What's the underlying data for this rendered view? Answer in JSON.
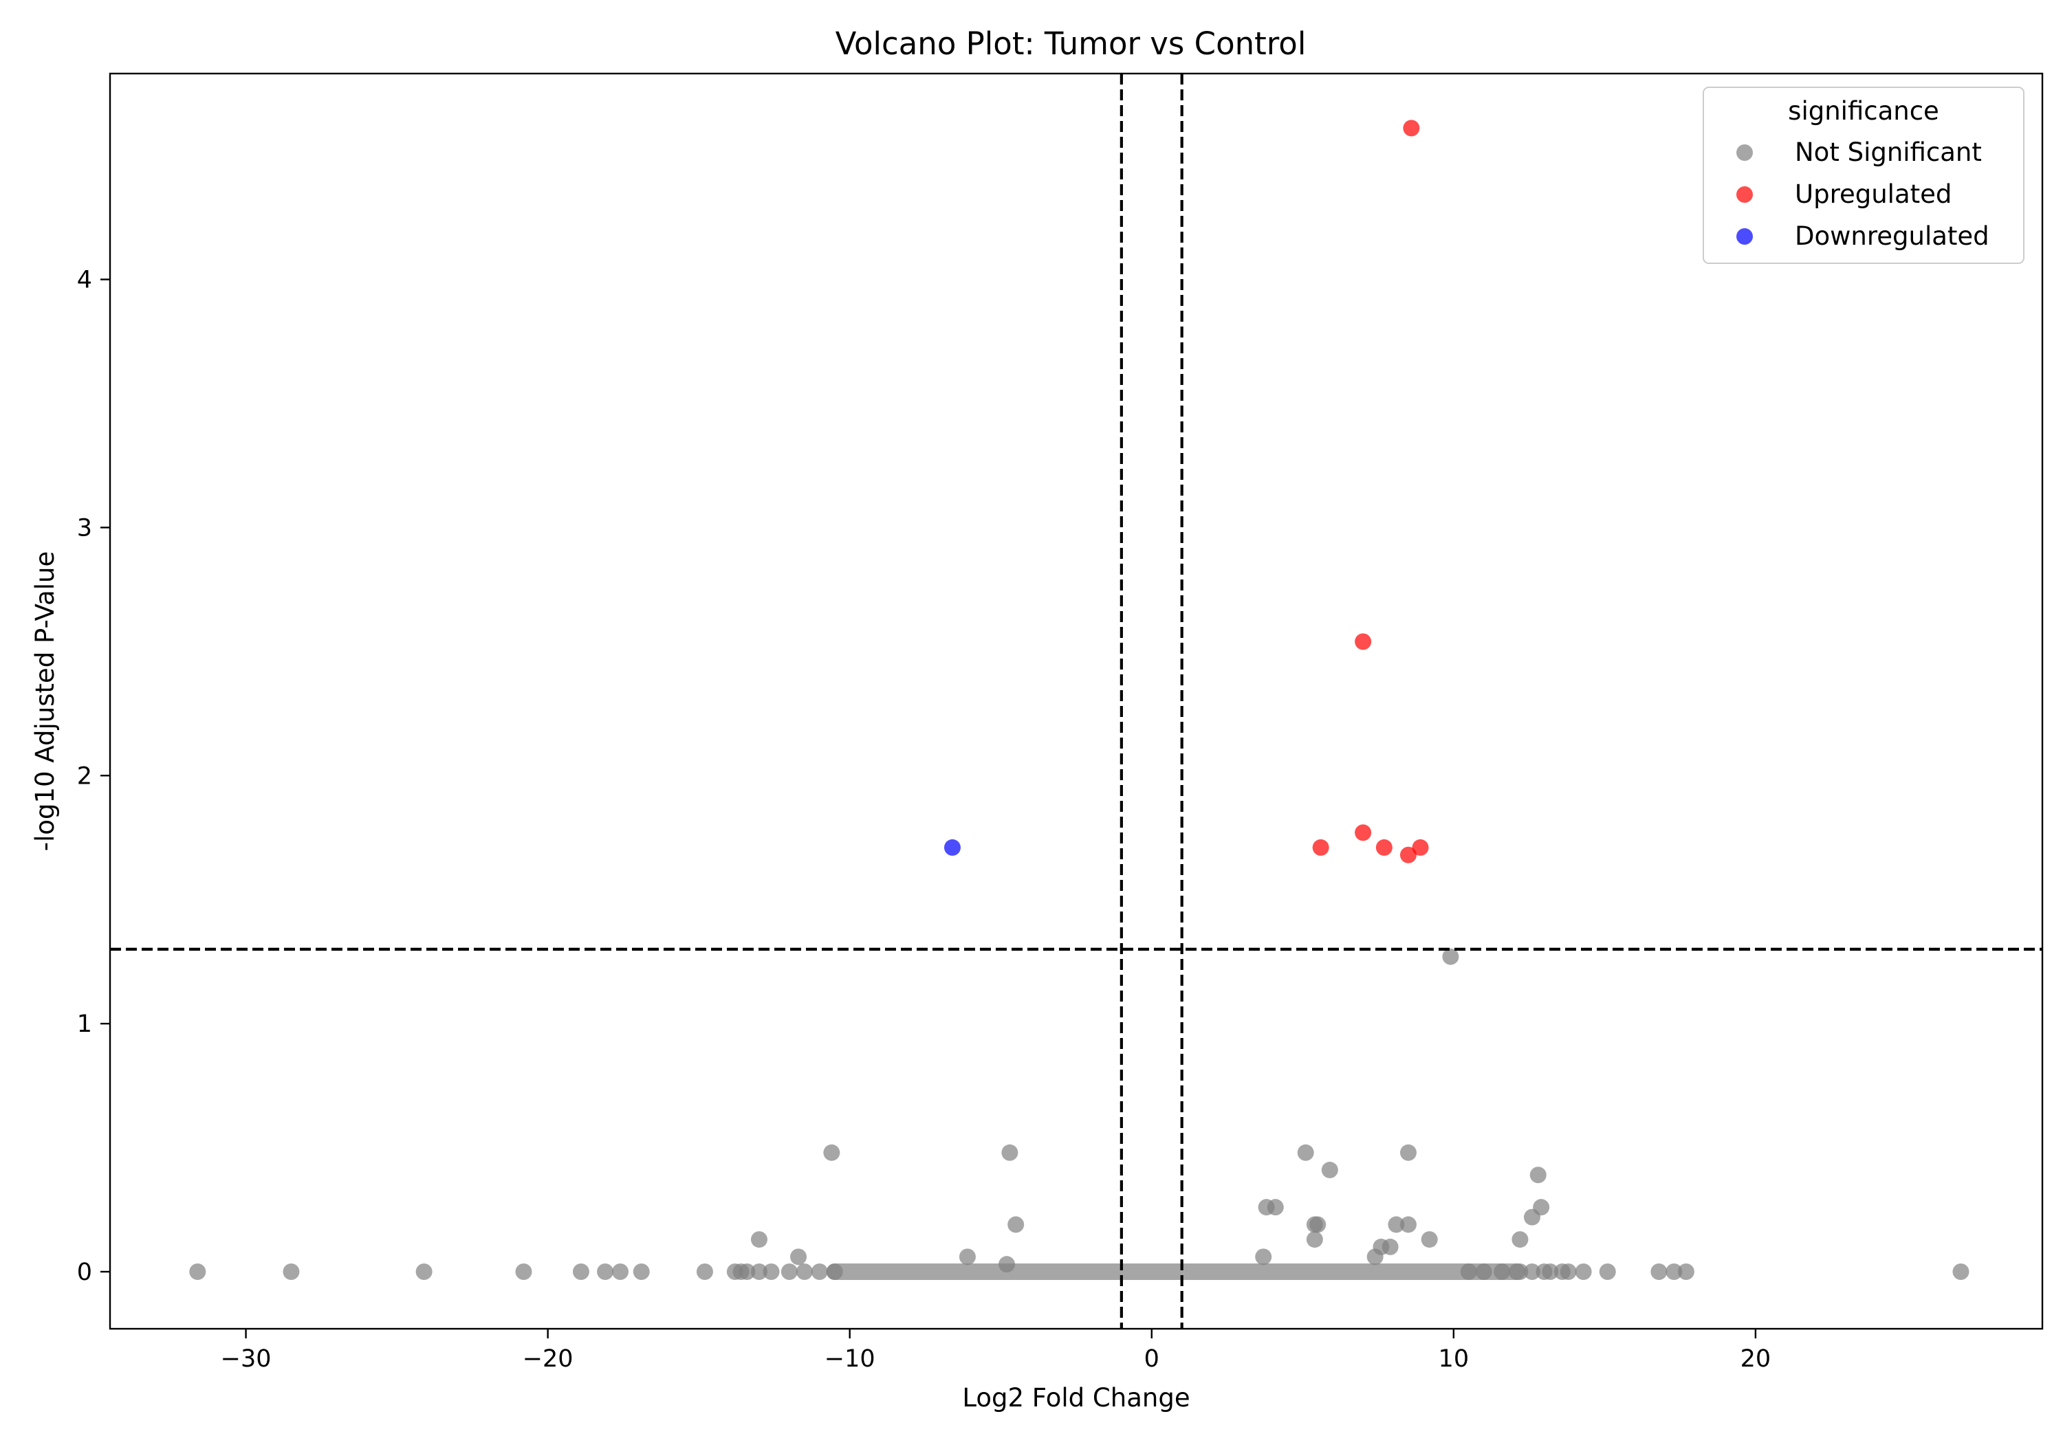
{
  "chart_data": {
    "type": "scatter",
    "title": "Volcano Plot: Tumor vs Control",
    "xlabel": "Log2 Fold Change",
    "ylabel": "-log10 Adjusted P-Value",
    "xlim": [
      -34.5,
      29.5
    ],
    "ylim": [
      -0.23,
      4.83
    ],
    "xticks": [
      -30,
      -20,
      -10,
      0,
      10,
      20
    ],
    "xtick_labels": [
      "−30",
      "−20",
      "−10",
      "0",
      "10",
      "20"
    ],
    "yticks": [
      0,
      1,
      2,
      3,
      4
    ],
    "ytick_labels": [
      "0",
      "1",
      "2",
      "3",
      "4"
    ],
    "grid": false,
    "threshold_lines": {
      "log2fc": [
        -1,
        1
      ],
      "neg_log10_padj": 1.3
    },
    "legend": {
      "title": "significance",
      "position": "top-right",
      "entries": [
        "Not Significant",
        "Upregulated",
        "Downregulated"
      ]
    },
    "series": [
      {
        "name": "Not Significant",
        "color": "#808080",
        "points": [
          [
            -31.6,
            0
          ],
          [
            -28.5,
            0
          ],
          [
            -24.1,
            0
          ],
          [
            -20.8,
            0
          ],
          [
            -18.9,
            0
          ],
          [
            -18.1,
            0
          ],
          [
            -17.6,
            0
          ],
          [
            -16.9,
            0
          ],
          [
            -14.8,
            0
          ],
          [
            -13.8,
            0
          ],
          [
            -13.6,
            0
          ],
          [
            -13.4,
            0
          ],
          [
            -13.0,
            0.13
          ],
          [
            -13.0,
            0
          ],
          [
            -12.6,
            0
          ],
          [
            -12.0,
            0
          ],
          [
            -11.7,
            0.06
          ],
          [
            -11.5,
            0
          ],
          [
            -11.0,
            0
          ],
          [
            -10.6,
            0.48
          ],
          [
            -10.5,
            0
          ],
          [
            -6.1,
            0.06
          ],
          [
            -4.7,
            0.48
          ],
          [
            -4.8,
            0.03
          ],
          [
            -4.5,
            0.19
          ],
          [
            3.8,
            0.26
          ],
          [
            3.7,
            0.06
          ],
          [
            4.1,
            0.26
          ],
          [
            5.1,
            0.48
          ],
          [
            5.4,
            0.19
          ],
          [
            5.5,
            0.19
          ],
          [
            5.4,
            0.13
          ],
          [
            5.9,
            0.41
          ],
          [
            7.4,
            0.06
          ],
          [
            7.6,
            0.1
          ],
          [
            7.9,
            0.1
          ],
          [
            8.1,
            0.19
          ],
          [
            8.5,
            0.48
          ],
          [
            8.5,
            0.19
          ],
          [
            9.2,
            0.13
          ],
          [
            9.9,
            1.27
          ],
          [
            12.2,
            0.13
          ],
          [
            12.6,
            0.22
          ],
          [
            12.8,
            0.39
          ],
          [
            12.9,
            0.26
          ],
          [
            12.6,
            0
          ],
          [
            13.0,
            0
          ],
          [
            13.2,
            0
          ],
          [
            13.6,
            0
          ],
          [
            13.8,
            0
          ],
          [
            14.3,
            0
          ],
          [
            15.1,
            0
          ],
          [
            16.8,
            0
          ],
          [
            17.3,
            0
          ],
          [
            17.7,
            0
          ],
          [
            26.8,
            0
          ],
          [
            10.5,
            0
          ],
          [
            11.0,
            0
          ],
          [
            11.6,
            0
          ],
          [
            12.1,
            0
          ]
        ],
        "dense_band": {
          "x_range": [
            -10.5,
            12.2
          ],
          "y": 0
        }
      },
      {
        "name": "Upregulated",
        "color": "#ff0000",
        "points": [
          [
            8.6,
            4.61
          ],
          [
            7.0,
            2.54
          ],
          [
            5.6,
            1.71
          ],
          [
            7.0,
            1.77
          ],
          [
            7.7,
            1.71
          ],
          [
            8.5,
            1.68
          ],
          [
            8.9,
            1.71
          ]
        ]
      },
      {
        "name": "Downregulated",
        "color": "#0000ff",
        "points": [
          [
            -6.6,
            1.71
          ]
        ]
      }
    ]
  }
}
